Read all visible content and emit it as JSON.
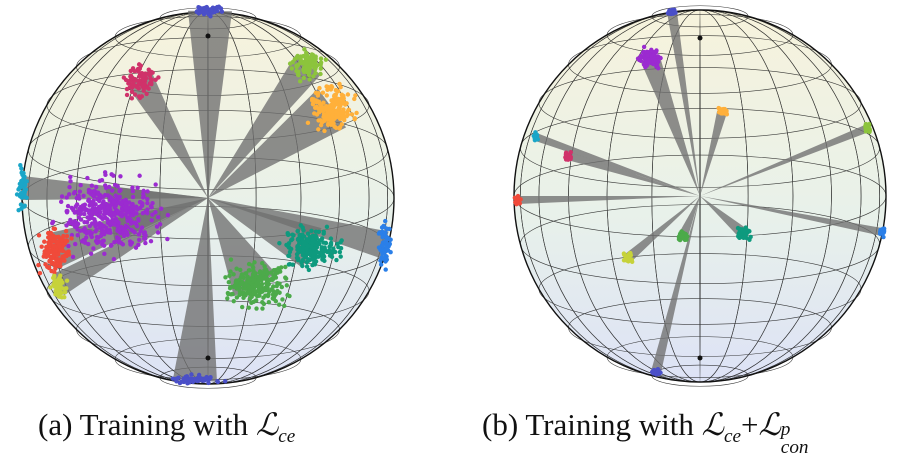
{
  "figure": {
    "panels": [
      {
        "id": "a",
        "caption_prefix": "(a) Training with ",
        "loss_letter": "ℒ",
        "loss_sub": "ce",
        "clusters": [
          {
            "name": "indigo-pole-top",
            "color": "#4a4fc8"
          },
          {
            "name": "crimson",
            "color": "#d0326a"
          },
          {
            "name": "lime",
            "color": "#8cc43c"
          },
          {
            "name": "orange",
            "color": "#ffb03a"
          },
          {
            "name": "cyan",
            "color": "#1aa6c8"
          },
          {
            "name": "purple",
            "color": "#9b2bd0"
          },
          {
            "name": "red",
            "color": "#f04a3a"
          },
          {
            "name": "yellow-green",
            "color": "#c6d23a"
          },
          {
            "name": "teal",
            "color": "#0e9a7e"
          },
          {
            "name": "green",
            "color": "#4caa4a"
          },
          {
            "name": "blue",
            "color": "#2a7fe8"
          },
          {
            "name": "indigo-pole-bottom",
            "color": "#4a4fc8"
          }
        ]
      },
      {
        "id": "b",
        "caption_prefix": "(b) Training with ",
        "loss_letter": "ℒ",
        "loss_sub": "ce",
        "plus": "+",
        "loss2_letter": "ℒ",
        "loss2_sub": "con",
        "loss2_sup": "p"
      }
    ]
  }
}
